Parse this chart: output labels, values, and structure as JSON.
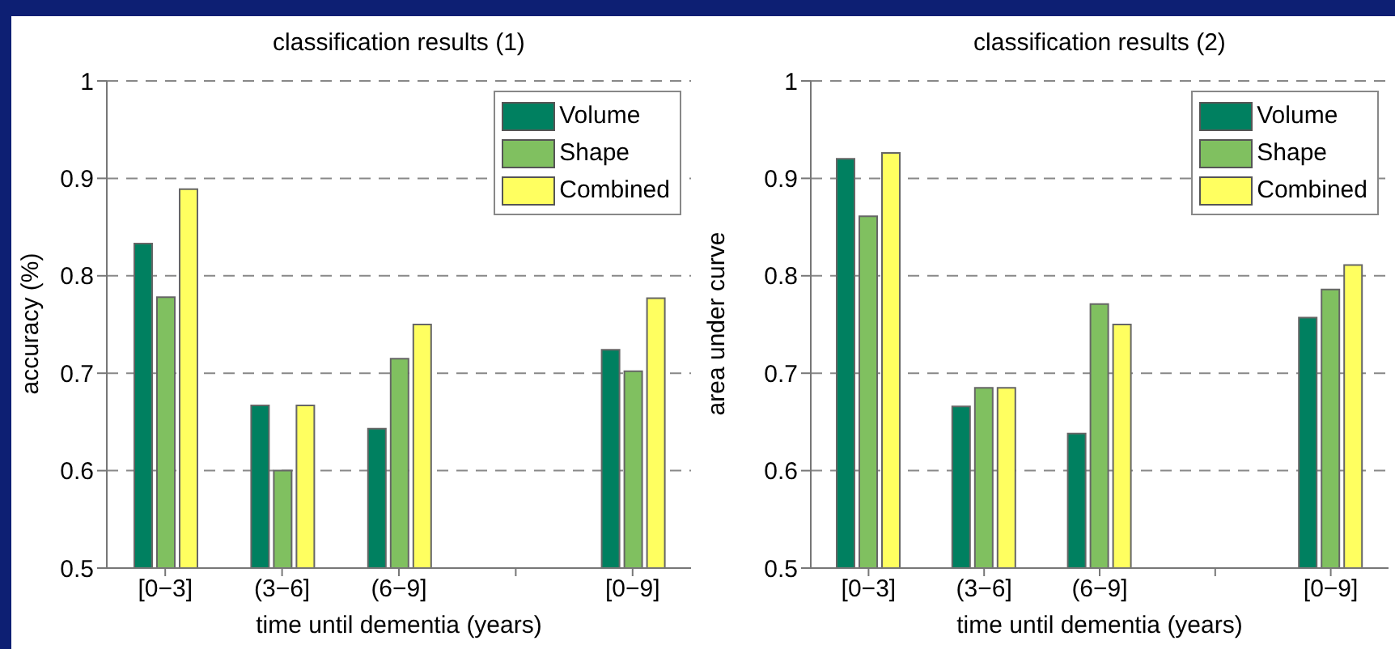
{
  "chart_data": [
    {
      "type": "bar",
      "title": "classification results (1)",
      "xlabel": "time until dementia (years)",
      "ylabel": "accuracy (%)",
      "categories": [
        "[0−3]",
        "(3−6]",
        "(6−9]",
        null,
        "[0−9]"
      ],
      "series": [
        {
          "name": "Volume",
          "color": "#008060",
          "values": [
            0.833,
            0.667,
            0.643,
            null,
            0.724
          ]
        },
        {
          "name": "Shape",
          "color": "#80c060",
          "values": [
            0.778,
            0.6,
            0.715,
            null,
            0.702
          ]
        },
        {
          "name": "Combined",
          "color": "#ffff60",
          "values": [
            0.889,
            0.667,
            0.75,
            null,
            0.777
          ]
        }
      ],
      "ylim": [
        0.5,
        1
      ],
      "yticks": [
        0.5,
        0.6,
        0.7,
        0.8,
        0.9,
        1
      ],
      "grid": "y",
      "legend": "top right"
    },
    {
      "type": "bar",
      "title": "classification results (2)",
      "xlabel": "time until dementia (years)",
      "ylabel": "area under curve",
      "categories": [
        "[0−3]",
        "(3−6]",
        "(6−9]",
        null,
        "[0−9]"
      ],
      "series": [
        {
          "name": "Volume",
          "color": "#008060",
          "values": [
            0.92,
            0.666,
            0.638,
            null,
            0.757
          ]
        },
        {
          "name": "Shape",
          "color": "#80c060",
          "values": [
            0.861,
            0.685,
            0.771,
            null,
            0.786
          ]
        },
        {
          "name": "Combined",
          "color": "#ffff60",
          "values": [
            0.926,
            0.685,
            0.75,
            null,
            0.811
          ]
        }
      ],
      "ylim": [
        0.5,
        1
      ],
      "yticks": [
        0.5,
        0.6,
        0.7,
        0.8,
        0.9,
        1
      ],
      "grid": "y",
      "legend": "top right"
    }
  ]
}
